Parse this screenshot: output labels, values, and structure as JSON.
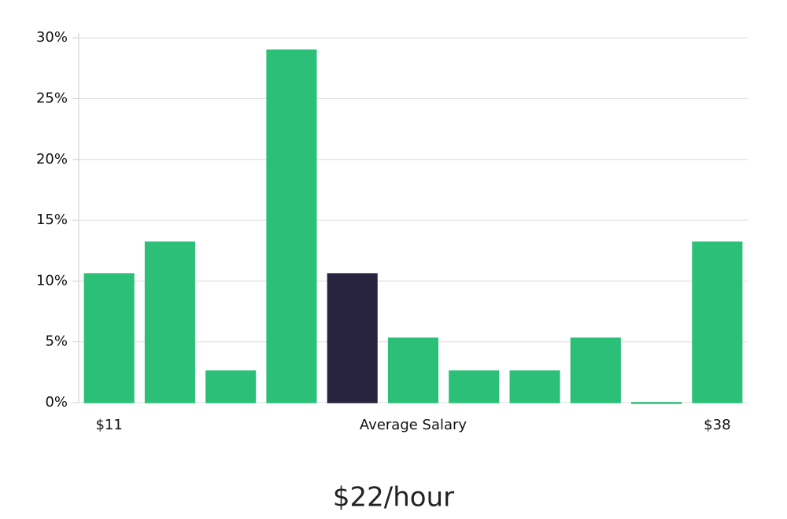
{
  "chart_data": {
    "type": "bar",
    "caption": "$22/hour",
    "categories": [
      "$11",
      null,
      null,
      null,
      null,
      "Average Salary",
      null,
      null,
      null,
      null,
      "$38"
    ],
    "values": [
      10.6,
      13.2,
      2.6,
      29,
      10.6,
      5.3,
      2.6,
      2.6,
      5.3,
      0,
      13.2
    ],
    "colors": [
      "#2bbf78",
      "#2bbf78",
      "#2bbf78",
      "#2bbf78",
      "#28243f",
      "#2bbf78",
      "#2bbf78",
      "#2bbf78",
      "#2bbf78",
      "#2bbf78",
      "#2bbf78"
    ],
    "ylim": [
      0,
      30.4
    ],
    "yticks": [
      {
        "value": 0,
        "label": "0%"
      },
      {
        "value": 5,
        "label": "5%"
      },
      {
        "value": 10,
        "label": "10%"
      },
      {
        "value": 15,
        "label": "15%"
      },
      {
        "value": 20,
        "label": "20%"
      },
      {
        "value": 25,
        "label": "25%"
      },
      {
        "value": 30,
        "label": "30%"
      }
    ],
    "grid": true
  }
}
